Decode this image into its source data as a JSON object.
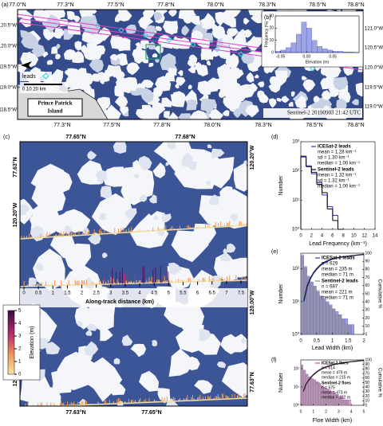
{
  "panels": {
    "a": {
      "label": "(a)",
      "top_labels": [
        "77.0°N",
        "77.3°N",
        "77.5°N",
        "77.8°N",
        "78.0°N",
        "78.3°N",
        "78.5°N",
        "78.8°N"
      ],
      "bottom_labels": [
        "77.3°N",
        "77.5°N",
        "77.8°N",
        "78.0°N",
        "78.3°N",
        "78.5°N",
        "78.8°N"
      ],
      "left_labels": [
        "120.5°W",
        "120.0°W",
        "119.5°W",
        "119.0°W",
        "118.5°W"
      ],
      "right_labels": [
        "121.0°W",
        "120.5°W",
        "120.0°W",
        "119.5°W",
        "119.0°W"
      ],
      "legend": "leads",
      "scale": "0    10    20 km",
      "island": [
        "Prince Patrick",
        "Island"
      ],
      "caption": "Sentinel-2 20190903 21:42 UTC"
    },
    "c": {
      "label": "(c)",
      "top_labels": [
        "77.65°N",
        "77.68°N"
      ],
      "bottom_labels": [
        "77.63°N",
        "77.65°N"
      ],
      "left_labels": [
        "77.63°N",
        "120.20°W",
        "120.00°W"
      ],
      "right_labels": [
        "120.20°W",
        "120.00°W",
        "77.63°N"
      ],
      "distance": {
        "label": "Along-track distance (km)",
        "lim": [
          0,
          7.5
        ],
        "ticks": [
          0,
          0.5,
          1,
          1.5,
          2,
          2.5,
          3,
          3.5,
          4,
          4.5,
          5,
          5.5,
          6,
          6.5,
          7,
          7.5
        ]
      },
      "colorbar": {
        "label": "Elevation (m)",
        "lim": [
          0,
          5
        ],
        "ticks": [
          0,
          1,
          2,
          3,
          4,
          5
        ]
      }
    }
  },
  "chart_data": [
    {
      "type": "histogram",
      "panel_label": "(b)",
      "xlabel": "Elevation (m)",
      "ylabel": "Frequency (%)",
      "style": "bars",
      "bins": [
        -0.06,
        -0.05,
        -0.04,
        -0.03,
        -0.02,
        -0.01,
        0,
        0.01,
        0.02,
        0.03,
        0.04,
        0.05,
        0.06,
        0.07,
        0.08,
        0.09,
        0.1
      ],
      "series": [
        {
          "color": "#3b4bc8",
          "values": [
            1,
            2,
            4,
            8,
            15,
            25,
            20,
            10,
            5,
            3,
            2,
            1,
            1,
            0.5,
            0.5,
            0.3
          ]
        }
      ],
      "xlim": [
        -0.06,
        0.1
      ],
      "xticks": [
        -0.05,
        {
          "value": 0,
          "label": "0.00"
        },
        0.05
      ],
      "ylim": [
        0,
        30
      ],
      "yticks": [
        0,
        10,
        20,
        30
      ],
      "log_y": false
    },
    {
      "type": "histogram",
      "panel_label": "(d)",
      "xlabel": "Lead Frequency (km⁻¹)",
      "ylabel": "Number",
      "style": "step",
      "bins": [
        0,
        1,
        2,
        3,
        4,
        5,
        6,
        7,
        8
      ],
      "series": [
        {
          "name": "ICESat-2 leads",
          "color": "#2b2bd0",
          "values": [
            300,
            150,
            80,
            40,
            15,
            6,
            3,
            1
          ],
          "stats": [
            "mean = 1.28 km⁻¹",
            "sd = 1.30 km⁻¹",
            "median = 1.00 km⁻¹"
          ]
        },
        {
          "name": "Sentinel-2 leads",
          "color": "#000000",
          "values": [
            320,
            140,
            90,
            35,
            18,
            5,
            2,
            1
          ],
          "stats": [
            "mean = 1.32 km⁻¹",
            "sd = 1.32 km⁻¹",
            "median = 1.00 km⁻¹"
          ]
        }
      ],
      "xlim": [
        0,
        14
      ],
      "xticks": [
        0,
        2,
        4,
        6,
        8,
        10,
        12,
        14
      ],
      "ylim": [
        1,
        1000
      ],
      "yticks": [
        {
          "value": 1,
          "label": "10⁰"
        },
        {
          "value": 10,
          "label": "10¹"
        },
        {
          "value": 100,
          "label": "10²"
        },
        {
          "value": 1000,
          "label": "10³"
        }
      ],
      "log_y": true
    },
    {
      "type": "histogram",
      "panel_label": "(e)",
      "xlabel": "Lead Width (km)",
      "ylabel": "Number",
      "y2label": "Cumulative %",
      "style": "bars",
      "bins": [
        0,
        0.1,
        0.2,
        0.3,
        0.4,
        0.5,
        0.6,
        0.7,
        0.8,
        0.9,
        1,
        1.1,
        1.2,
        1.3,
        1.4,
        1.5,
        1.6,
        1.7,
        1.8,
        1.9,
        2
      ],
      "series": [
        {
          "name": "ICESat-2 leads",
          "color": "#3b3bd0",
          "values": [
            250,
            110,
            60,
            40,
            30,
            20,
            15,
            12,
            10,
            8,
            6,
            5,
            4,
            3,
            3,
            2,
            2,
            1,
            1,
            1
          ],
          "stats": [
            "n = 629",
            "mean = 235 m",
            "median = 71 m"
          ]
        },
        {
          "name": "Sentinel-2 leads",
          "color": "#888888",
          "values": [
            270,
            120,
            55,
            38,
            28,
            22,
            14,
            11,
            9,
            7,
            6,
            4,
            4,
            3,
            2,
            2,
            1,
            1,
            1,
            1
          ],
          "stats": [
            "n = 687",
            "mean = 221 m",
            "median = 71 m"
          ]
        }
      ],
      "lines": [
        {
          "color": "#2b2bd0",
          "axis": "y2",
          "x": [
            0.1,
            0.2,
            0.3,
            0.4,
            0.5,
            0.6,
            0.7,
            0.8,
            0.9,
            1,
            1.1,
            1.2,
            1.3,
            1.4,
            1.5,
            1.6,
            1.7,
            1.8,
            1.9,
            2
          ],
          "values": [
            40,
            58,
            68,
            75,
            80,
            84,
            87,
            89,
            91,
            92.5,
            93.5,
            94.5,
            95.2,
            95.8,
            96.3,
            96.8,
            97.2,
            97.6,
            98,
            98.3
          ]
        },
        {
          "color": "#222222",
          "axis": "y2",
          "x": [
            0.1,
            0.2,
            0.3,
            0.4,
            0.5,
            0.6,
            0.7,
            0.8,
            0.9,
            1,
            1.1,
            1.2,
            1.3,
            1.4,
            1.5,
            1.6,
            1.7,
            1.8,
            1.9,
            2
          ],
          "values": [
            42,
            60,
            69,
            76,
            81,
            85,
            88,
            90,
            91.5,
            93,
            94,
            94.8,
            95.5,
            96,
            96.5,
            97,
            97.4,
            97.8,
            98.2,
            98.5
          ]
        }
      ],
      "xlim": [
        0,
        2
      ],
      "xticks": [
        0,
        0.5,
        1,
        1.5,
        2
      ],
      "ylim": [
        1,
        300
      ],
      "yticks": [
        {
          "value": 1,
          "label": "10⁰"
        },
        {
          "value": 10,
          "label": "10¹"
        },
        {
          "value": 100,
          "label": "10²"
        }
      ],
      "log_y": true,
      "y2lim": [
        0,
        100
      ],
      "y2ticks": [
        0,
        10,
        20,
        30,
        40,
        50,
        60,
        70,
        80,
        90,
        100
      ]
    },
    {
      "type": "histogram",
      "panel_label": "(f)",
      "xlabel": "Floe Width (km)",
      "ylabel": "Number",
      "y2label": "Cumulative %",
      "style": "bars",
      "bins": [
        0,
        0.2,
        0.4,
        0.6,
        0.8,
        1,
        1.2,
        1.4,
        1.6,
        1.8,
        2,
        2.2,
        2.4,
        2.6,
        2.8,
        3,
        3.2,
        3.4,
        3.6,
        3.8,
        4,
        4.2,
        4.4,
        4.6,
        4.8,
        5
      ],
      "series": [
        {
          "name": "ICESat-2 floes",
          "color": "#d040c0",
          "values": [
            150,
            80,
            50,
            35,
            30,
            25,
            20,
            15,
            12,
            10,
            8,
            7,
            6,
            5,
            4,
            3,
            3,
            2,
            2,
            2,
            1,
            1,
            1,
            1,
            1
          ],
          "stats": [
            "n = 614",
            "mean = 479 m",
            "median = 215 m"
          ]
        },
        {
          "name": "Sentinel-2 floes",
          "color": "#888888",
          "values": [
            160,
            85,
            48,
            36,
            28,
            24,
            18,
            16,
            11,
            9,
            8,
            6,
            5,
            5,
            4,
            3,
            2,
            2,
            2,
            1,
            1,
            1,
            1,
            1,
            1
          ],
          "stats": [
            "n = 675",
            "mean = 473 m",
            "median = 222 m"
          ]
        }
      ],
      "lines": [
        {
          "color": "#b02aa0",
          "axis": "y2",
          "x": [
            0.2,
            0.4,
            0.6,
            0.8,
            1,
            1.2,
            1.4,
            1.6,
            1.8,
            2,
            2.2,
            2.4,
            2.6,
            2.8,
            3,
            3.2,
            3.4,
            3.6,
            3.8,
            4,
            4.2,
            4.4,
            4.6,
            4.8,
            5
          ],
          "values": [
            30,
            45,
            55,
            62,
            68,
            73,
            77,
            80,
            83,
            85,
            87,
            88.5,
            90,
            91,
            92,
            93,
            94,
            94.8,
            95.5,
            96.2,
            96.8,
            97.4,
            98,
            98.5,
            99
          ]
        },
        {
          "color": "#222222",
          "axis": "y2",
          "x": [
            0.2,
            0.4,
            0.6,
            0.8,
            1,
            1.2,
            1.4,
            1.6,
            1.8,
            2,
            2.2,
            2.4,
            2.6,
            2.8,
            3,
            3.2,
            3.4,
            3.6,
            3.8,
            4,
            4.2,
            4.4,
            4.6,
            4.8,
            5
          ],
          "values": [
            31,
            46,
            54,
            61,
            67,
            72,
            76,
            79,
            82,
            84,
            86,
            88,
            89.5,
            90.5,
            91.5,
            92.5,
            93.5,
            94.5,
            95.2,
            96,
            96.6,
            97.2,
            97.8,
            98.4,
            99
          ]
        }
      ],
      "xlim": [
        0,
        5
      ],
      "xticks": [
        0,
        1,
        2,
        3,
        4,
        5
      ],
      "ylim": [
        1,
        300
      ],
      "yticks": [
        {
          "value": 1,
          "label": "10⁰"
        },
        {
          "value": 10,
          "label": "10¹"
        },
        {
          "value": 100,
          "label": "10²"
        }
      ],
      "log_y": true,
      "y2lim": [
        0,
        100
      ],
      "y2ticks": [
        0,
        10,
        20,
        30,
        40,
        50,
        60,
        70,
        80,
        90,
        100
      ]
    }
  ]
}
